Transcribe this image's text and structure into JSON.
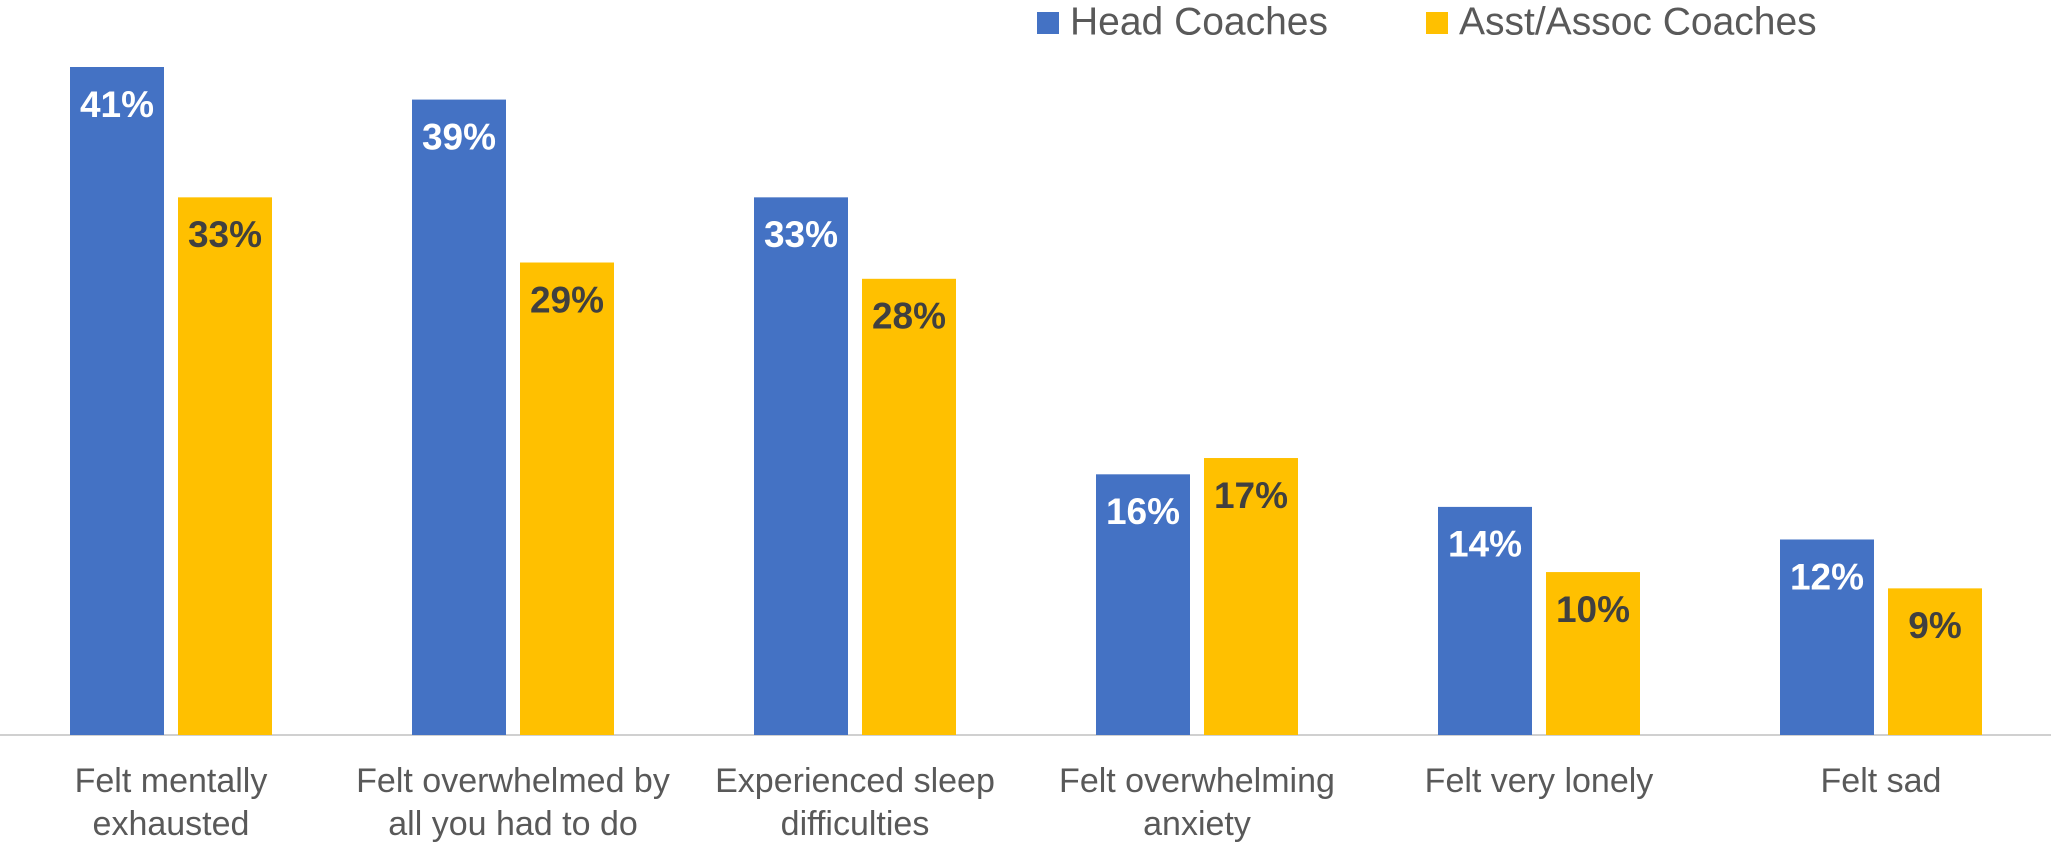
{
  "chart_data": {
    "type": "bar",
    "categories": [
      "Felt mentally exhausted",
      "Felt overwhelmed by all you had to do",
      "Experienced sleep difficulties",
      "Felt overwhelming anxiety",
      "Felt very lonely",
      "Felt sad"
    ],
    "series": [
      {
        "name": "Head Coaches",
        "color": "#4472c4",
        "label_color": "#ffffff",
        "values": [
          41,
          39,
          33,
          16,
          14,
          12
        ],
        "value_labels": [
          "41%",
          "39%",
          "33%",
          "16%",
          "14%",
          "12%"
        ]
      },
      {
        "name": "Asst/Assoc Coaches",
        "color": "#ffc000",
        "label_color": "#404040",
        "values": [
          33,
          29,
          28,
          17,
          10,
          9
        ],
        "value_labels": [
          "33%",
          "29%",
          "28%",
          "17%",
          "10%",
          "9%"
        ]
      }
    ],
    "legend": "top-right"
  }
}
